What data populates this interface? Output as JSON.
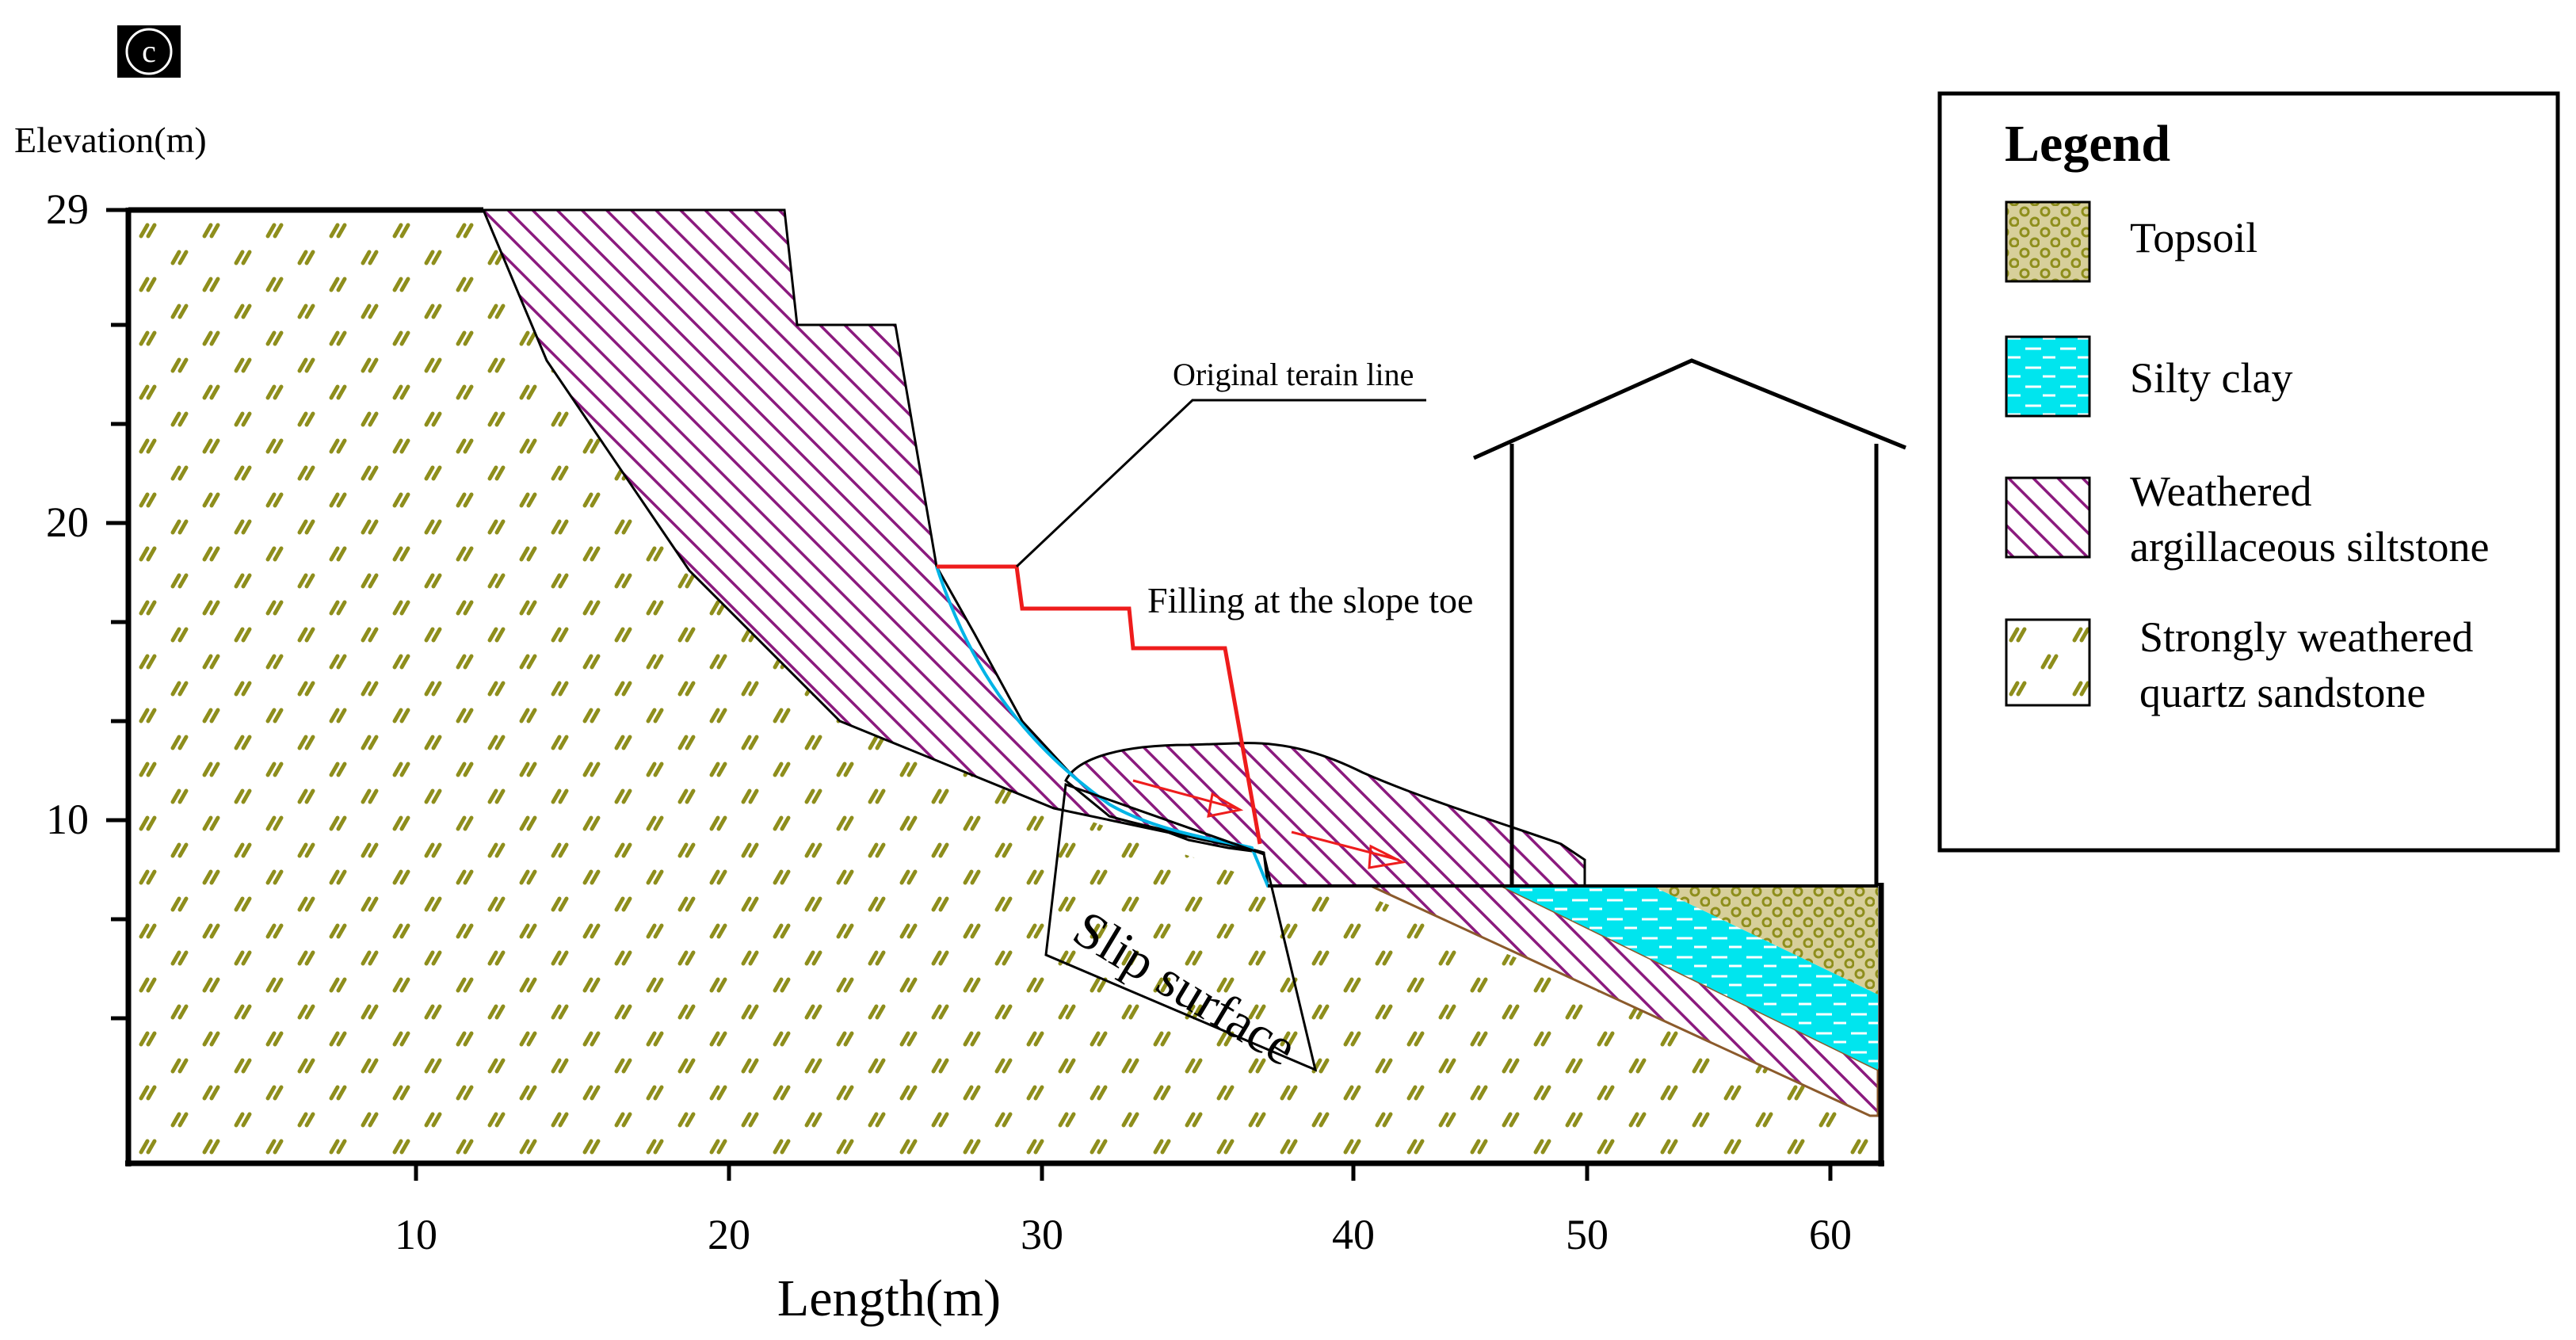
{
  "panel_label": "c",
  "axes": {
    "y_title": "Elevation(m)",
    "x_title": "Length(m)",
    "y_ticks": [
      "29",
      "20",
      "10"
    ],
    "x_ticks": [
      "10",
      "20",
      "30",
      "40",
      "50",
      "60"
    ]
  },
  "annotations": {
    "original_terrain": "Original terain line",
    "filling": "Filling at the slope toe",
    "slip_surface": "Slip surface"
  },
  "legend": {
    "title": "Legend",
    "items": [
      {
        "label_lines": [
          "Topsoil"
        ]
      },
      {
        "label_lines": [
          "Silty clay"
        ]
      },
      {
        "label_lines": [
          "Weathered",
          "argillaceous siltstone"
        ]
      },
      {
        "label_lines": [
          "Strongly weathered",
          "quartz sandstone"
        ]
      }
    ]
  },
  "colors": {
    "sandstone_mark": "#8e8e1c",
    "siltstone_hatch": "#8b1a7e",
    "silty_clay_fill": "#00e5ee",
    "topsoil_dot": "#8e8e1c",
    "terrain_line": "#ee1c1c",
    "slip_line": "#00b4e6"
  }
}
